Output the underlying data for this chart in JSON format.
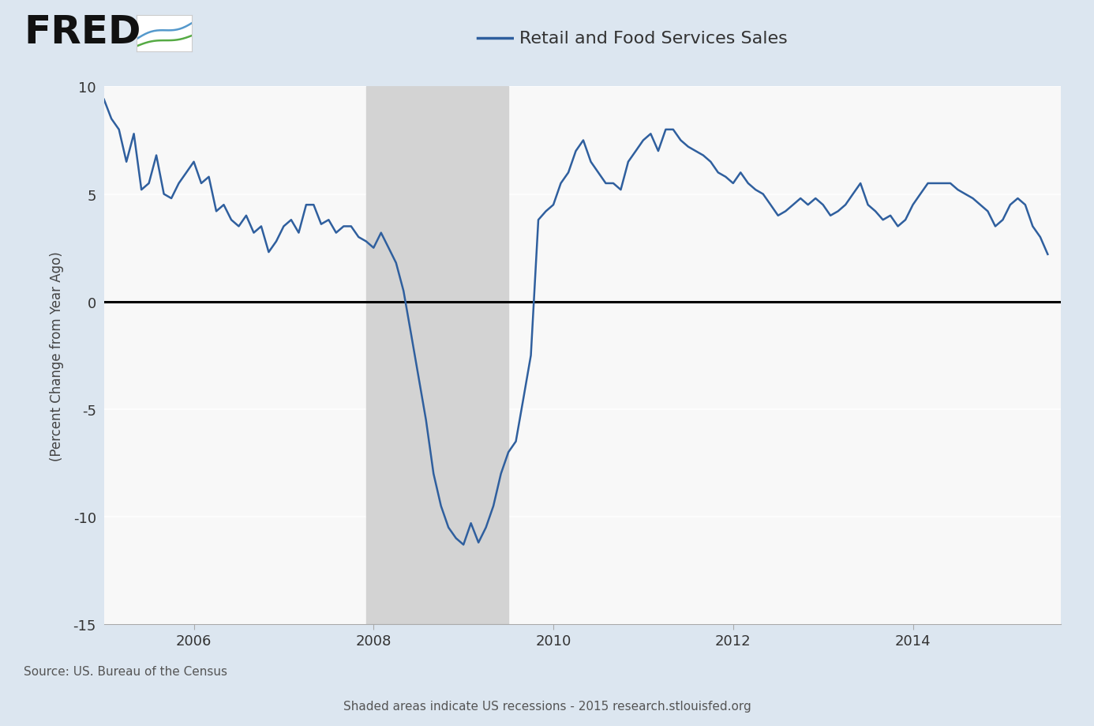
{
  "title": "Retail and Food Services Sales",
  "ylabel": "(Percent Change from Year Ago)",
  "source_text": "Source: US. Bureau of the Census",
  "recession_text": "Shaded areas indicate US recessions - 2015 research.stlouisfed.org",
  "background_color": "#dce6f0",
  "line_color": "#2f5f9e",
  "recession_color": "#d3d3d3",
  "zero_line_color": "#000000",
  "ylim": [
    -15,
    10
  ],
  "yticks": [
    -15,
    -10,
    -5,
    0,
    5,
    10
  ],
  "recession_start": 2007.917,
  "recession_end": 2009.5,
  "xtick_positions": [
    2006,
    2008,
    2010,
    2012,
    2014
  ],
  "xlim": [
    2005.0,
    2015.65
  ],
  "dates": [
    2005.0,
    2005.083,
    2005.167,
    2005.25,
    2005.333,
    2005.417,
    2005.5,
    2005.583,
    2005.667,
    2005.75,
    2005.833,
    2005.917,
    2006.0,
    2006.083,
    2006.167,
    2006.25,
    2006.333,
    2006.417,
    2006.5,
    2006.583,
    2006.667,
    2006.75,
    2006.833,
    2006.917,
    2007.0,
    2007.083,
    2007.167,
    2007.25,
    2007.333,
    2007.417,
    2007.5,
    2007.583,
    2007.667,
    2007.75,
    2007.833,
    2007.917,
    2008.0,
    2008.083,
    2008.167,
    2008.25,
    2008.333,
    2008.417,
    2008.5,
    2008.583,
    2008.667,
    2008.75,
    2008.833,
    2008.917,
    2009.0,
    2009.083,
    2009.167,
    2009.25,
    2009.333,
    2009.417,
    2009.5,
    2009.583,
    2009.667,
    2009.75,
    2009.833,
    2009.917,
    2010.0,
    2010.083,
    2010.167,
    2010.25,
    2010.333,
    2010.417,
    2010.5,
    2010.583,
    2010.667,
    2010.75,
    2010.833,
    2010.917,
    2011.0,
    2011.083,
    2011.167,
    2011.25,
    2011.333,
    2011.417,
    2011.5,
    2011.583,
    2011.667,
    2011.75,
    2011.833,
    2011.917,
    2012.0,
    2012.083,
    2012.167,
    2012.25,
    2012.333,
    2012.417,
    2012.5,
    2012.583,
    2012.667,
    2012.75,
    2012.833,
    2012.917,
    2013.0,
    2013.083,
    2013.167,
    2013.25,
    2013.333,
    2013.417,
    2013.5,
    2013.583,
    2013.667,
    2013.75,
    2013.833,
    2013.917,
    2014.0,
    2014.083,
    2014.167,
    2014.25,
    2014.333,
    2014.417,
    2014.5,
    2014.583,
    2014.667,
    2014.75,
    2014.833,
    2014.917,
    2015.0,
    2015.083,
    2015.167,
    2015.25,
    2015.333,
    2015.417,
    2015.5
  ],
  "values": [
    9.4,
    8.5,
    8.0,
    6.5,
    7.8,
    5.2,
    5.5,
    6.8,
    5.0,
    4.8,
    5.5,
    6.0,
    6.5,
    5.5,
    5.8,
    4.2,
    4.5,
    3.8,
    3.5,
    4.0,
    3.2,
    3.5,
    2.3,
    2.8,
    3.5,
    3.8,
    3.2,
    4.5,
    4.5,
    3.6,
    3.8,
    3.2,
    3.5,
    3.5,
    3.0,
    2.8,
    2.5,
    3.2,
    2.5,
    1.8,
    0.5,
    -1.5,
    -3.5,
    -5.5,
    -8.0,
    -9.5,
    -10.5,
    -11.0,
    -11.3,
    -10.3,
    -11.2,
    -10.5,
    -9.5,
    -8.0,
    -7.0,
    -6.5,
    -4.5,
    -2.5,
    3.8,
    4.2,
    4.5,
    5.5,
    6.0,
    7.0,
    7.5,
    6.5,
    6.0,
    5.5,
    5.5,
    5.2,
    6.5,
    7.0,
    7.5,
    7.8,
    7.0,
    8.0,
    8.0,
    7.5,
    7.2,
    7.0,
    6.8,
    6.5,
    6.0,
    5.8,
    5.5,
    6.0,
    5.5,
    5.2,
    5.0,
    4.5,
    4.0,
    4.2,
    4.5,
    4.8,
    4.5,
    4.8,
    4.5,
    4.0,
    4.2,
    4.5,
    5.0,
    5.5,
    4.5,
    4.2,
    3.8,
    4.0,
    3.5,
    3.8,
    4.5,
    5.0,
    5.5,
    5.5,
    5.5,
    5.5,
    5.2,
    5.0,
    4.8,
    4.5,
    4.2,
    3.5,
    3.8,
    4.5,
    4.8,
    4.5,
    3.5,
    3.0,
    2.2
  ]
}
